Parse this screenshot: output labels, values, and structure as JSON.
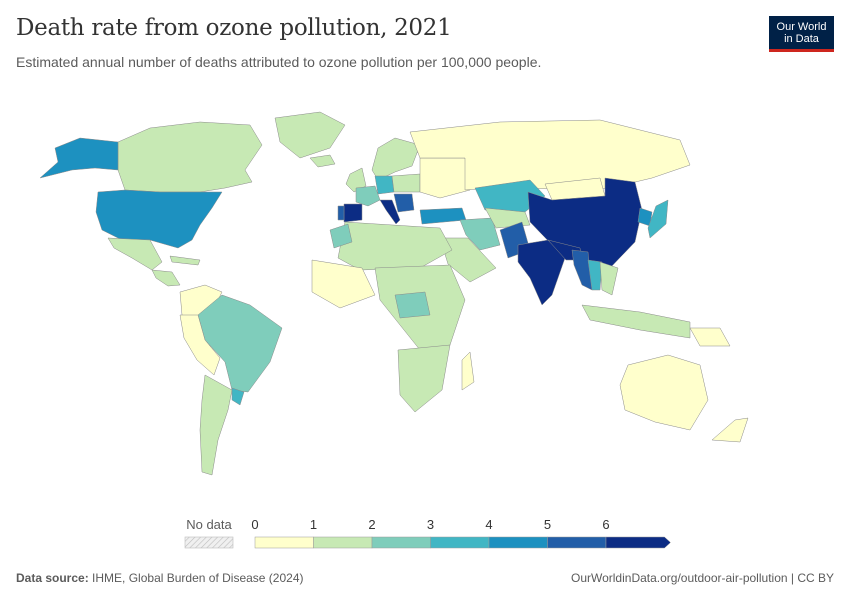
{
  "header": {
    "title": "Death rate from ozone pollution, 2021",
    "subtitle": "Estimated annual number of deaths attributed to ozone pollution per 100,000 people."
  },
  "logo": {
    "line1": "Our World",
    "line2": "in Data",
    "bg_color": "#002147",
    "accent_color": "#ce261e"
  },
  "legend": {
    "no_data_label": "No data",
    "ticks": [
      "0",
      "1",
      "2",
      "3",
      "4",
      "5",
      "6"
    ],
    "colors": [
      "#ffffcc",
      "#c7e9b4",
      "#7fcdbb",
      "#41b6c4",
      "#1d91c0",
      "#225ea8",
      "#0c2c84"
    ]
  },
  "footer": {
    "source_label": "Data source:",
    "source_text": "IHME, Global Burden of Disease (2024)",
    "url": "OurWorldinData.org/outdoor-air-pollution | CC BY"
  },
  "map_data": {
    "type": "choropleth",
    "metric_unit": "deaths per 100,000 people",
    "regions": [
      {
        "name": "Canada",
        "bin": 1
      },
      {
        "name": "Alaska (United States)",
        "bin": 4
      },
      {
        "name": "United States",
        "bin": 4
      },
      {
        "name": "Greenland",
        "bin": 1
      },
      {
        "name": "Mexico",
        "bin": 1
      },
      {
        "name": "Central America",
        "bin": 1
      },
      {
        "name": "Caribbean",
        "bin": 1
      },
      {
        "name": "Colombia / Venezuela",
        "bin": 0
      },
      {
        "name": "Brazil",
        "bin": 2
      },
      {
        "name": "Peru / Bolivia",
        "bin": 0
      },
      {
        "name": "Argentina / Chile",
        "bin": 1
      },
      {
        "name": "Uruguay",
        "bin": 3
      },
      {
        "name": "Iceland",
        "bin": 1
      },
      {
        "name": "Norway / Sweden / Finland",
        "bin": 1
      },
      {
        "name": "United Kingdom / Ireland",
        "bin": 1
      },
      {
        "name": "Spain",
        "bin": 6
      },
      {
        "name": "Portugal",
        "bin": 5
      },
      {
        "name": "France",
        "bin": 2
      },
      {
        "name": "Germany",
        "bin": 3
      },
      {
        "name": "Italy",
        "bin": 6
      },
      {
        "name": "Balkans",
        "bin": 5
      },
      {
        "name": "Poland / Central Europe",
        "bin": 1
      },
      {
        "name": "Eastern Europe",
        "bin": 0
      },
      {
        "name": "Russia",
        "bin": 0
      },
      {
        "name": "Kazakhstan",
        "bin": 3
      },
      {
        "name": "Mongolia",
        "bin": 0
      },
      {
        "name": "China",
        "bin": 6
      },
      {
        "name": "Korea",
        "bin": 4
      },
      {
        "name": "Japan",
        "bin": 3
      },
      {
        "name": "Turkey",
        "bin": 4
      },
      {
        "name": "Iran",
        "bin": 2
      },
      {
        "name": "Central Asia",
        "bin": 1
      },
      {
        "name": "Arabian Peninsula",
        "bin": 1
      },
      {
        "name": "Pakistan",
        "bin": 5
      },
      {
        "name": "India",
        "bin": 6
      },
      {
        "name": "Nepal / Bangladesh",
        "bin": 6
      },
      {
        "name": "Myanmar",
        "bin": 5
      },
      {
        "name": "Thailand",
        "bin": 3
      },
      {
        "name": "Southeast Asia",
        "bin": 1
      },
      {
        "name": "Indonesia / Philippines",
        "bin": 1
      },
      {
        "name": "North Africa",
        "bin": 1
      },
      {
        "name": "Morocco",
        "bin": 2
      },
      {
        "name": "West Africa",
        "bin": 0
      },
      {
        "name": "Central & East Africa",
        "bin": 1
      },
      {
        "name": "DR Congo region",
        "bin": 2
      },
      {
        "name": "Southern Africa",
        "bin": 1
      },
      {
        "name": "Madagascar",
        "bin": 0
      },
      {
        "name": "Australia",
        "bin": 0
      },
      {
        "name": "New Zealand",
        "bin": 0
      },
      {
        "name": "Papua New Guinea",
        "bin": 0
      }
    ]
  }
}
